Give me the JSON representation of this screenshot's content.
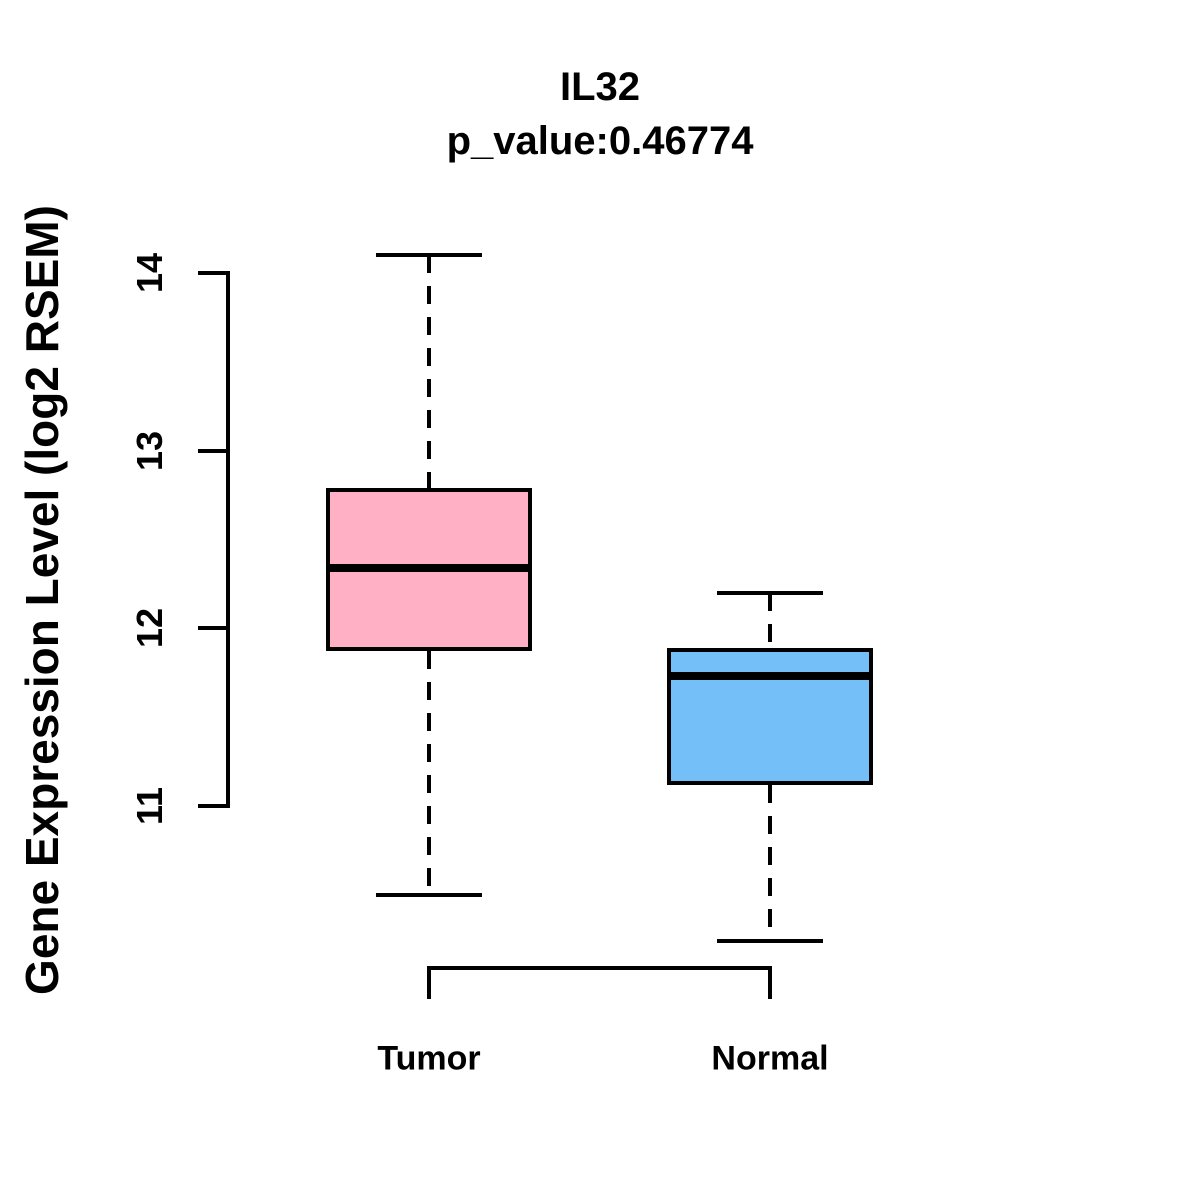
{
  "chart_data": {
    "type": "boxplot",
    "title": "IL32",
    "subtitle": "p_value:0.46774",
    "ylabel": "Gene Expression Level (log2 RSEM)",
    "yticks": [
      11,
      12,
      13,
      14
    ],
    "axis_tick_range": [
      11,
      14
    ],
    "grid": false,
    "legend": "none",
    "line_color": "#000000",
    "background": "#FFFFFF",
    "categories": [
      "Tumor",
      "Normal"
    ],
    "groups": [
      {
        "label": "Tumor",
        "fill": "#FFB0C5",
        "stats": {
          "lower_whisker": 10.5,
          "q1": 11.87,
          "median": 12.34,
          "q3": 12.79,
          "upper_whisker": 14.1
        }
      },
      {
        "label": "Normal",
        "fill": "#74BFF8",
        "stats": {
          "lower_whisker": 10.24,
          "q1": 11.12,
          "median": 11.73,
          "q3": 11.89,
          "upper_whisker": 12.2
        }
      }
    ]
  }
}
